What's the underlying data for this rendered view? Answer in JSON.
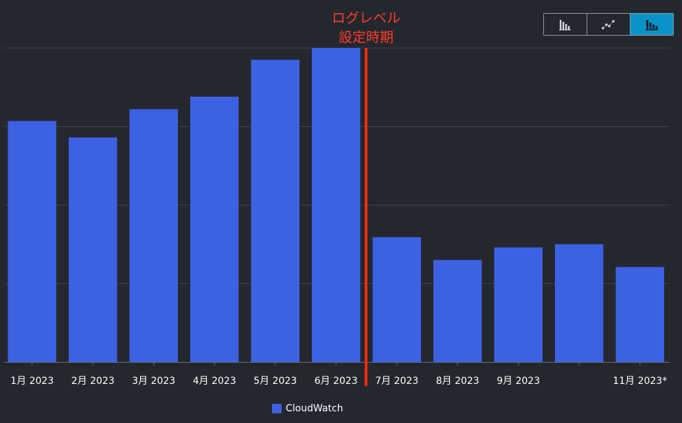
{
  "chart_data": {
    "type": "bar",
    "categories": [
      "1月 2023",
      "2月 2023",
      "3月 2023",
      "4月 2023",
      "5月 2023",
      "6月 2023",
      "7月 2023",
      "8月 2023",
      "9月 2023",
      "",
      "11月 2023*"
    ],
    "series": [
      {
        "name": "CloudWatch",
        "values": [
          3.07,
          2.86,
          3.22,
          3.38,
          3.85,
          4.0,
          1.59,
          1.3,
          1.46,
          1.5,
          1.21
        ]
      }
    ],
    "ylim": [
      0,
      4
    ],
    "grid": true,
    "legend_position": "bottom-center",
    "marker": {
      "after_category": "6月 2023",
      "label_line1": "ログレベル",
      "label_line2": "設定時期"
    }
  },
  "colors": {
    "bar": "#3d61e3",
    "marker_line": "#fa2a0a",
    "annotation_text": "#ff3b2b",
    "background": "#24272e",
    "grid": "#3e434b",
    "axis": "#6a717c",
    "tick_text": "#ffffff",
    "toggle_active": "#0a93c9"
  },
  "view_toggle": {
    "items": [
      {
        "icon": "bar-chart-icon",
        "active": false
      },
      {
        "icon": "line-chart-icon",
        "active": false
      },
      {
        "icon": "stacked-bar-chart-icon",
        "active": true
      }
    ]
  }
}
